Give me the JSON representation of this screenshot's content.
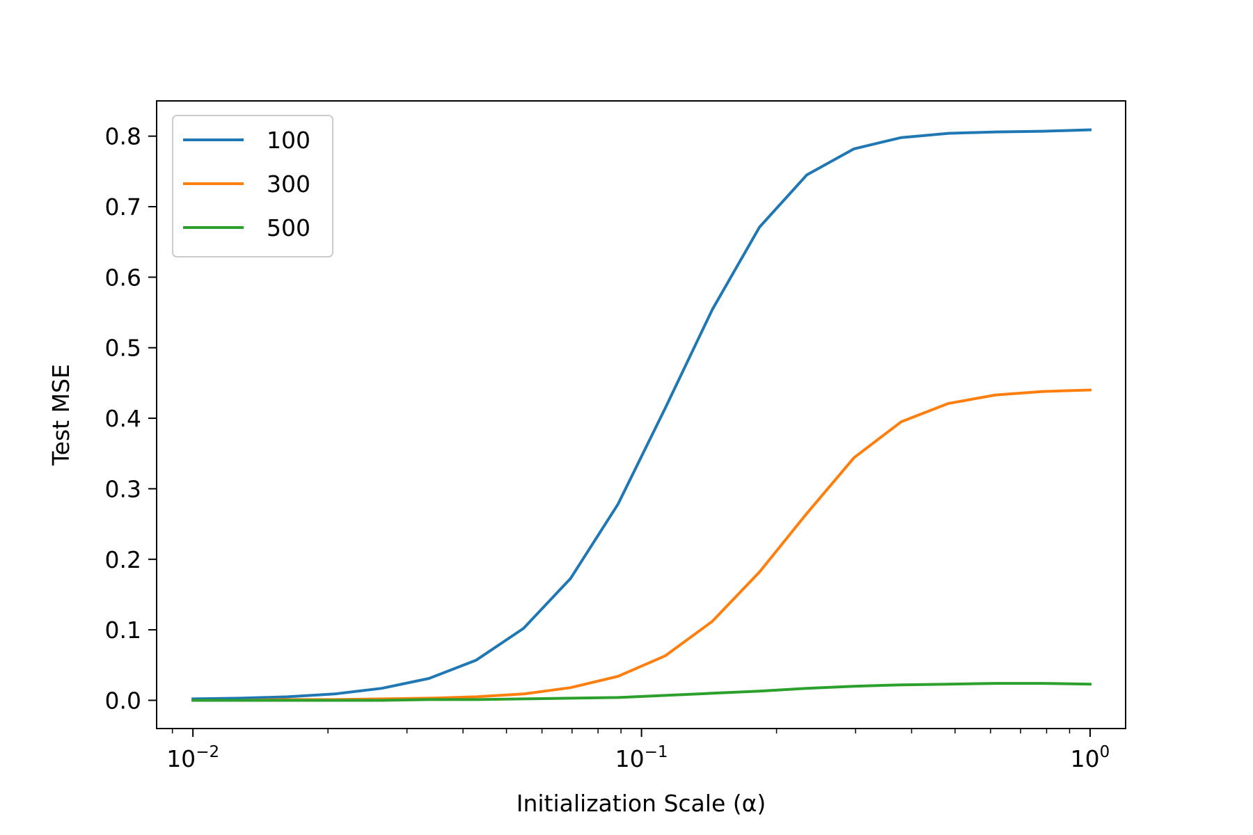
{
  "chart_data": {
    "type": "line",
    "title": "",
    "xlabel": "Initialization Scale (α)",
    "ylabel": "Test MSE",
    "xscale": "log",
    "xlim": [
      0.0083,
      1.2
    ],
    "ylim": [
      -0.04,
      0.85
    ],
    "grid": false,
    "legend_position": "top-left",
    "x_ticks": [
      {
        "value": 0.01,
        "base": "10",
        "exp": "−2"
      },
      {
        "value": 0.1,
        "base": "10",
        "exp": "−1"
      },
      {
        "value": 1,
        "base": "10",
        "exp": "0"
      }
    ],
    "y_ticks": [
      {
        "value": 0.0,
        "label": "0.0"
      },
      {
        "value": 0.1,
        "label": "0.1"
      },
      {
        "value": 0.2,
        "label": "0.2"
      },
      {
        "value": 0.3,
        "label": "0.3"
      },
      {
        "value": 0.4,
        "label": "0.4"
      },
      {
        "value": 0.5,
        "label": "0.5"
      },
      {
        "value": 0.6,
        "label": "0.6"
      },
      {
        "value": 0.7,
        "label": "0.7"
      },
      {
        "value": 0.8,
        "label": "0.8"
      }
    ],
    "x": [
      0.01,
      0.01274,
      0.01624,
      0.02069,
      0.02637,
      0.0336,
      0.04281,
      0.05456,
      0.06952,
      0.08859,
      0.1129,
      0.1438,
      0.1833,
      0.2336,
      0.2976,
      0.3793,
      0.4833,
      0.6158,
      0.7848,
      1.0
    ],
    "series": [
      {
        "name": "100",
        "color": "#1f77b4",
        "values": [
          0.002,
          0.003,
          0.005,
          0.009,
          0.017,
          0.031,
          0.057,
          0.102,
          0.173,
          0.278,
          0.414,
          0.554,
          0.671,
          0.745,
          0.782,
          0.798,
          0.804,
          0.806,
          0.807,
          0.809
        ]
      },
      {
        "name": "300",
        "color": "#ff7f0e",
        "values": [
          0.0,
          0.0,
          0.001,
          0.001,
          0.002,
          0.003,
          0.005,
          0.009,
          0.018,
          0.034,
          0.063,
          0.112,
          0.182,
          0.265,
          0.344,
          0.395,
          0.421,
          0.433,
          0.438,
          0.44
        ]
      },
      {
        "name": "500",
        "color": "#2ca02c",
        "values": [
          0.0,
          0.0,
          0.0,
          0.0,
          0.0,
          0.001,
          0.001,
          0.002,
          0.003,
          0.004,
          0.007,
          0.01,
          0.013,
          0.017,
          0.02,
          0.022,
          0.023,
          0.024,
          0.024,
          0.023
        ]
      }
    ]
  }
}
